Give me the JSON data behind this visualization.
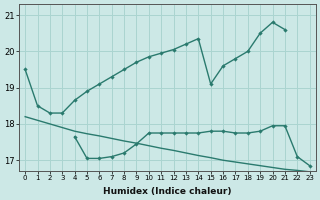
{
  "xlabel": "Humidex (Indice chaleur)",
  "bg_color": "#cce8e6",
  "grid_color": "#aad4d0",
  "line_color": "#2a7a6e",
  "ylim": [
    16.7,
    21.3
  ],
  "yticks": [
    17,
    18,
    19,
    20,
    21
  ],
  "xticks": [
    0,
    1,
    2,
    3,
    4,
    5,
    6,
    7,
    8,
    9,
    10,
    11,
    12,
    13,
    14,
    15,
    16,
    17,
    18,
    19,
    20,
    21,
    22,
    23
  ],
  "curve_upper": [
    19.5,
    18.5,
    18.3,
    18.3,
    18.65,
    18.9,
    19.1,
    19.3,
    19.5,
    19.7,
    19.85,
    19.95,
    20.05,
    20.2,
    20.35,
    19.1,
    19.6,
    19.8,
    20.0,
    20.5,
    20.8,
    20.6,
    null,
    null
  ],
  "curve_mid": [
    null,
    null,
    18.3,
    18.3,
    null,
    null,
    null,
    null,
    null,
    null,
    null,
    null,
    null,
    null,
    null,
    null,
    null,
    null,
    null,
    null,
    null,
    null,
    null,
    null
  ],
  "curve_lower_markers": [
    null,
    null,
    null,
    null,
    17.65,
    17.05,
    17.05,
    17.1,
    17.2,
    17.45,
    17.75,
    17.75,
    17.75,
    17.75,
    17.75,
    17.8,
    17.8,
    17.75,
    17.75,
    17.8,
    17.95,
    17.95,
    17.1,
    16.85
  ],
  "curve_straight": [
    18.2,
    18.1,
    18.0,
    17.9,
    17.8,
    17.73,
    17.67,
    17.6,
    17.53,
    17.47,
    17.4,
    17.33,
    17.27,
    17.2,
    17.13,
    17.07,
    17.0,
    16.95,
    16.9,
    16.85,
    16.8,
    16.75,
    16.72,
    16.68
  ]
}
